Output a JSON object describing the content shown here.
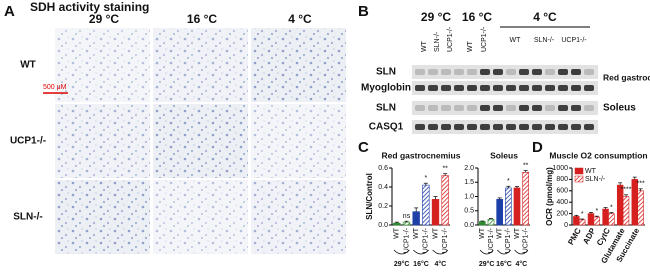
{
  "panel_labels": [
    "A",
    "B",
    "C",
    "D"
  ],
  "panel_a": {
    "title": "SDH activity staining",
    "columns": [
      "29 °C",
      "16 °C",
      "4 °C"
    ],
    "rows": [
      "WT",
      "UCP1-/-",
      "SLN-/-"
    ],
    "scale_bar": "500 μM"
  },
  "panel_b": {
    "temperatures": [
      "29 °C",
      "16 °C",
      "4 °C"
    ],
    "lanes": [
      "WT",
      "SLN-/-",
      "UCP1-/-",
      "WT",
      "UCP1-/-",
      "WT",
      "SLN-/-",
      "UCP1-/-"
    ],
    "blot_rows": [
      "SLN",
      "Myoglobin",
      "SLN",
      "CASQ1"
    ],
    "tissues": [
      "Red gastroc-nemius",
      "Soleus"
    ]
  },
  "chart_data": [
    {
      "type": "bar",
      "title": "Red gastrocnemius",
      "y_label": "SLN/Control",
      "categories": [
        "WT",
        "UCP1-/-",
        "WT",
        "UCP1-/-",
        "WT",
        "UCP1-/-"
      ],
      "groups": [
        "29°C",
        "16°C",
        "4°C"
      ],
      "values": [
        0.02,
        0.03,
        0.14,
        0.42,
        0.27,
        0.52
      ],
      "errors": [
        0.01,
        0.01,
        0.04,
        0.02,
        0.03,
        0.02
      ],
      "annotations": [
        null,
        "ns",
        null,
        "*",
        null,
        "**"
      ],
      "colors": [
        "#2e8b2e",
        "#2e8b2e",
        "#1f3fa8",
        "#1f3fa8",
        "#d62020",
        "#d62020"
      ],
      "hatch": [
        false,
        true,
        false,
        true,
        false,
        true
      ],
      "ylim": [
        0,
        0.6
      ],
      "yticks": [
        {
          "value": 0,
          "label": "0.0"
        },
        {
          "value": 0.2,
          "label": "0.2"
        },
        {
          "value": 0.4,
          "label": "0.4"
        },
        {
          "value": 0.6,
          "label": "0.6"
        }
      ]
    },
    {
      "type": "bar",
      "title": "Soleus",
      "categories": [
        "WT",
        "UCP1-/-",
        "WT",
        "UCP1-/-",
        "WT",
        "UCP1-/-"
      ],
      "groups": [
        "29°C",
        "16°C",
        "4°C"
      ],
      "values": [
        0.12,
        0.2,
        0.9,
        1.3,
        1.3,
        1.85
      ],
      "errors": [
        0.02,
        0.03,
        0.05,
        0.06,
        0.05,
        0.06
      ],
      "annotations": [
        null,
        null,
        null,
        "*",
        null,
        "**"
      ],
      "colors": [
        "#2e8b2e",
        "#2e8b2e",
        "#1f3fa8",
        "#1f3fa8",
        "#d62020",
        "#d62020"
      ],
      "hatch": [
        false,
        true,
        false,
        true,
        false,
        true
      ],
      "ylim": [
        0,
        2.0
      ],
      "yticks": [
        {
          "value": 0,
          "label": "0.0"
        },
        {
          "value": 0.5,
          "label": "0.5"
        },
        {
          "value": 1.0,
          "label": "1.0"
        },
        {
          "value": 1.5,
          "label": "1.5"
        },
        {
          "value": 2.0,
          "label": "2.0"
        }
      ]
    },
    {
      "type": "bar",
      "title": "Muscle O2 consumption",
      "y_label": "OCR (pmol/mg)",
      "categories": [
        "PMC",
        "ADP",
        "CytC",
        "Glutamate",
        "Succinate"
      ],
      "series": [
        {
          "name": "WT",
          "color": "#d62020",
          "hatch": false,
          "values": [
            150,
            200,
            280,
            700,
            800
          ],
          "errors": [
            20,
            20,
            25,
            40,
            40
          ]
        },
        {
          "name": "SLN-/-",
          "color": "#d62020",
          "hatch": true,
          "values": [
            90,
            140,
            200,
            500,
            600
          ],
          "errors": [
            15,
            15,
            20,
            30,
            35
          ],
          "annotations": [
            "*",
            "*",
            "*",
            "****",
            "***"
          ]
        }
      ],
      "ylim": [
        0,
        1000
      ],
      "yticks": [
        0,
        200,
        400,
        600,
        800,
        1000
      ],
      "legend": "top-left"
    }
  ]
}
